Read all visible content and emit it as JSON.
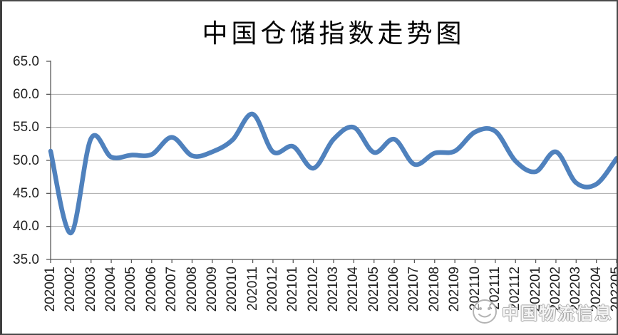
{
  "window": {
    "background": "#ffffff",
    "border_color": "#4a4a4a"
  },
  "chart_data": {
    "type": "line",
    "title": "中国仓储指数走势图",
    "categories": [
      "202001",
      "202002",
      "202003",
      "202004",
      "202005",
      "202006",
      "202007",
      "202008",
      "202009",
      "202010",
      "202011",
      "202012",
      "202101",
      "202102",
      "202103",
      "202104",
      "202105",
      "202106",
      "202107",
      "202108",
      "202109",
      "202110",
      "202111",
      "202112",
      "202201",
      "202202",
      "202203",
      "202204",
      "202205"
    ],
    "values": [
      51.4,
      39.0,
      53.3,
      50.5,
      50.8,
      50.9,
      53.5,
      50.7,
      51.3,
      53.1,
      57.0,
      51.3,
      52.1,
      48.8,
      53.2,
      55.0,
      51.2,
      53.2,
      49.4,
      51.1,
      51.4,
      54.3,
      54.4,
      49.9,
      48.3,
      51.3,
      46.6,
      46.4,
      50.3
    ],
    "xlabel": "",
    "ylabel": "",
    "ylim": [
      35.0,
      65.0
    ],
    "ytick_labels": [
      "65.0",
      "60.0",
      "55.0",
      "50.0",
      "45.0",
      "40.0",
      "35.0"
    ],
    "ytick_step": 5,
    "grid": "horizontal",
    "legend": "none",
    "smooth_line": true,
    "line_color": "#4F81BD",
    "gridline_color": "#a9a9a9",
    "axis_color": "#595959",
    "tick_label_color": "#1f1f1f"
  },
  "watermark": {
    "icon": "wechat-smiley-icon",
    "text": "中国物流信息",
    "text_color": "#9f9f9f"
  }
}
